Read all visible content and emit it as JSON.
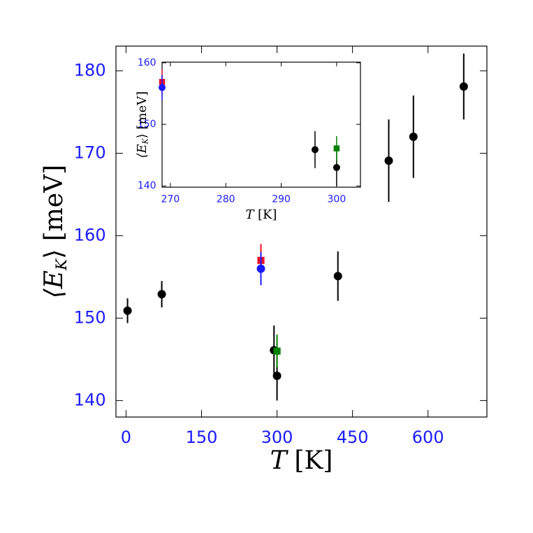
{
  "chart_data": [
    {
      "type": "scatter",
      "x_label": {
        "var": "T",
        "unit": "[K]"
      },
      "y_label": {
        "open": "⟨E",
        "sub": "K",
        "close": "⟩ [meV]"
      },
      "xlim": [
        -20,
        717
      ],
      "ylim": [
        138,
        183
      ],
      "xticks": [
        0,
        150,
        300,
        450,
        600
      ],
      "yticks": [
        140,
        150,
        160,
        170,
        180
      ],
      "tick_color": "#1a1aff",
      "series": [
        {
          "color": "#000000",
          "marker": "circle",
          "x": [
            3,
            71,
            294,
            300,
            421,
            522,
            571,
            671
          ],
          "values": [
            150.9,
            152.9,
            146.1,
            143.0,
            155.1,
            169.1,
            172.0,
            178.1
          ],
          "errors": [
            1.5,
            1.6,
            3,
            3,
            3,
            5,
            5,
            4
          ]
        },
        {
          "color": "#e8102a",
          "marker": "square",
          "x": [
            268
          ],
          "values": [
            157.0
          ],
          "errors": [
            2
          ]
        },
        {
          "color": "#1a1aff",
          "marker": "circle",
          "x": [
            268
          ],
          "values": [
            156.0
          ],
          "errors": [
            2
          ]
        },
        {
          "color": "#008000",
          "marker": "square",
          "x": [
            300
          ],
          "values": [
            146.0
          ],
          "errors": [
            2
          ]
        }
      ]
    },
    {
      "type": "scatter",
      "x_label": {
        "var": "T",
        "unit": "[K]"
      },
      "y_label": {
        "open": "⟨E",
        "sub": "K",
        "close": "⟩ [meV]"
      },
      "xlim": [
        268.5,
        304.3
      ],
      "ylim": [
        139.8,
        160.1
      ],
      "xticks": [
        270,
        280,
        290,
        300
      ],
      "yticks": [
        140,
        150,
        160
      ],
      "tick_color": "#1a1aff",
      "series": [
        {
          "color": "#e8102a",
          "marker": "square",
          "x": [
            268.5
          ],
          "values": [
            156.9
          ],
          "errors": [
            2
          ]
        },
        {
          "color": "#1a1aff",
          "marker": "circle",
          "x": [
            268.5
          ],
          "values": [
            156.0
          ],
          "errors": [
            2
          ]
        },
        {
          "color": "#000000",
          "marker": "circle",
          "x": [
            296.1,
            300
          ],
          "values": [
            145.9,
            143.0
          ],
          "errors": [
            3,
            3
          ]
        },
        {
          "color": "#008000",
          "marker": "square",
          "x": [
            300
          ],
          "values": [
            146.1
          ],
          "errors": [
            2
          ]
        }
      ]
    }
  ]
}
